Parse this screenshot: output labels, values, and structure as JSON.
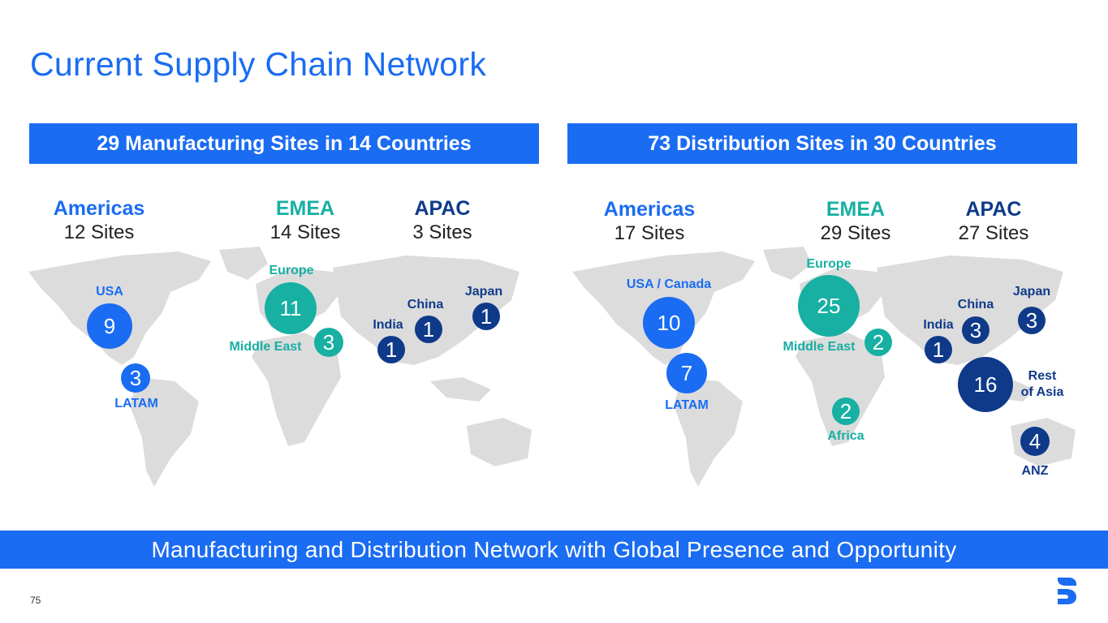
{
  "title": "Current Supply Chain Network",
  "manufacturing": {
    "header": "29 Manufacturing Sites in 14 Countries",
    "regions": [
      {
        "name": "Americas",
        "count": "12 Sites"
      },
      {
        "name": "EMEA",
        "count": "14 Sites"
      },
      {
        "name": "APAC",
        "count": "3 Sites"
      }
    ],
    "bubbles": {
      "usa": {
        "label": "USA",
        "value": "9"
      },
      "latam": {
        "label": "LATAM",
        "value": "3"
      },
      "europe": {
        "label": "Europe",
        "value": "11"
      },
      "middle_east": {
        "label": "Middle East",
        "value": "3"
      },
      "india": {
        "label": "India",
        "value": "1"
      },
      "china": {
        "label": "China",
        "value": "1"
      },
      "japan": {
        "label": "Japan",
        "value": "1"
      }
    }
  },
  "distribution": {
    "header": "73 Distribution Sites in 30 Countries",
    "regions": [
      {
        "name": "Americas",
        "count": "17 Sites"
      },
      {
        "name": "EMEA",
        "count": "29 Sites"
      },
      {
        "name": "APAC",
        "count": "27 Sites"
      }
    ],
    "bubbles": {
      "usa_canada": {
        "label": "USA / Canada",
        "value": "10"
      },
      "latam": {
        "label": "LATAM",
        "value": "7"
      },
      "europe": {
        "label": "Europe",
        "value": "25"
      },
      "middle_east": {
        "label": "Middle East",
        "value": "2"
      },
      "africa": {
        "label": "Africa",
        "value": "2"
      },
      "india": {
        "label": "India",
        "value": "1"
      },
      "china": {
        "label": "China",
        "value": "3"
      },
      "japan": {
        "label": "Japan",
        "value": "3"
      },
      "rest_of_asia": {
        "label_line1": "Rest",
        "label_line2": "of Asia",
        "value": "16"
      },
      "anz": {
        "label": "ANZ",
        "value": "4"
      }
    }
  },
  "footer": "Manufacturing and Distribution Network with Global Presence and Opportunity",
  "page_number": "75",
  "colors": {
    "blue": "#1a6cf2",
    "teal": "#17b0a3",
    "navy": "#0f3a8a",
    "map": "#dcdcdc"
  },
  "logo_icon": "s-logo-icon"
}
